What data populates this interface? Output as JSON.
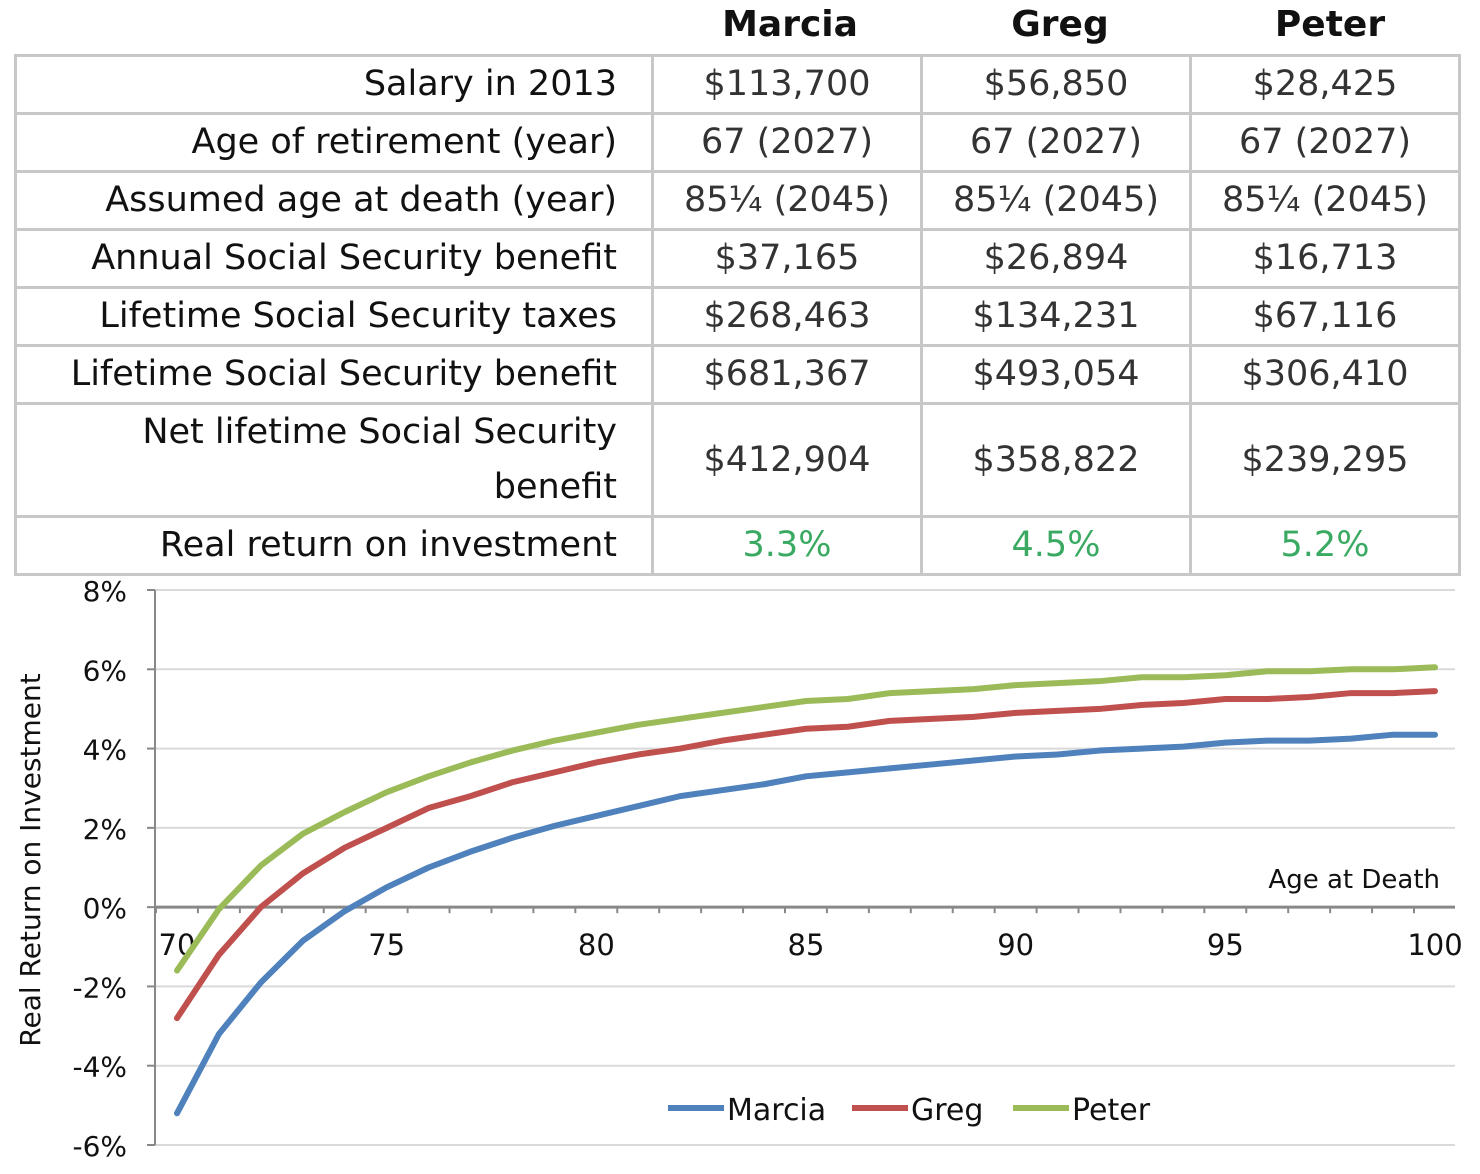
{
  "table": {
    "columns": [
      "Marcia",
      "Greg",
      "Peter"
    ],
    "rows": [
      {
        "label": "Salary in 2013",
        "values": [
          "$113,700",
          "$56,850",
          "$28,425"
        ]
      },
      {
        "label": "Age of retirement (year)",
        "values": [
          "67 (2027)",
          "67 (2027)",
          "67 (2027)"
        ]
      },
      {
        "label": "Assumed age at death (year)",
        "values": [
          "85¼ (2045)",
          "85¼ (2045)",
          "85¼ (2045)"
        ]
      },
      {
        "label": "Annual Social Security benefit",
        "values": [
          "$37,165",
          "$26,894",
          "$16,713"
        ]
      },
      {
        "label": "Lifetime Social Security taxes",
        "values": [
          "$268,463",
          "$134,231",
          "$67,116"
        ]
      },
      {
        "label": "Lifetime Social Security benefit",
        "values": [
          "$681,367",
          "$493,054",
          "$306,410"
        ]
      },
      {
        "label": "Net lifetime Social Security benefit",
        "values": [
          "$412,904",
          "$358,822",
          "$239,295"
        ]
      },
      {
        "label": "Real return on investment",
        "values": [
          "3.3%",
          "4.5%",
          "5.2%"
        ],
        "highlight_color": "#3aaa62"
      }
    ]
  },
  "chart_data": {
    "type": "line",
    "xlabel": "Age at Death",
    "ylabel": "Real Return on Investment",
    "xlim": [
      70,
      100
    ],
    "ylim": [
      -6,
      8
    ],
    "x_ticks": [
      "70",
      "75",
      "80",
      "85",
      "90",
      "95",
      "100"
    ],
    "y_ticks": [
      "8%",
      "6%",
      "4%",
      "2%",
      "0%",
      "-2%",
      "-4%",
      "-6%"
    ],
    "grid": "horizontal",
    "legend": "bottom",
    "x": [
      70,
      71,
      72,
      73,
      74,
      75,
      76,
      77,
      78,
      79,
      80,
      81,
      82,
      83,
      84,
      85,
      86,
      87,
      88,
      89,
      90,
      91,
      92,
      93,
      94,
      95,
      96,
      97,
      98,
      99,
      100
    ],
    "series": [
      {
        "name": "Marcia",
        "color": "#4f81bd",
        "values": [
          -5.2,
          -3.2,
          -1.9,
          -0.85,
          -0.1,
          0.5,
          1.0,
          1.4,
          1.75,
          2.05,
          2.3,
          2.55,
          2.8,
          2.95,
          3.1,
          3.3,
          3.4,
          3.5,
          3.6,
          3.7,
          3.8,
          3.85,
          3.95,
          4.0,
          4.05,
          4.15,
          4.2,
          4.2,
          4.25,
          4.35,
          4.35
        ]
      },
      {
        "name": "Greg",
        "color": "#c0504d",
        "values": [
          -2.8,
          -1.2,
          0.0,
          0.85,
          1.5,
          2.0,
          2.5,
          2.8,
          3.15,
          3.4,
          3.65,
          3.85,
          4.0,
          4.2,
          4.35,
          4.5,
          4.55,
          4.7,
          4.75,
          4.8,
          4.9,
          4.95,
          5.0,
          5.1,
          5.15,
          5.25,
          5.25,
          5.3,
          5.4,
          5.4,
          5.45
        ]
      },
      {
        "name": "Peter",
        "color": "#9bbb59",
        "values": [
          -1.6,
          -0.05,
          1.05,
          1.85,
          2.4,
          2.9,
          3.3,
          3.65,
          3.95,
          4.2,
          4.4,
          4.6,
          4.75,
          4.9,
          5.05,
          5.2,
          5.25,
          5.4,
          5.45,
          5.5,
          5.6,
          5.65,
          5.7,
          5.8,
          5.8,
          5.85,
          5.95,
          5.95,
          6.0,
          6.0,
          6.05
        ]
      }
    ]
  }
}
